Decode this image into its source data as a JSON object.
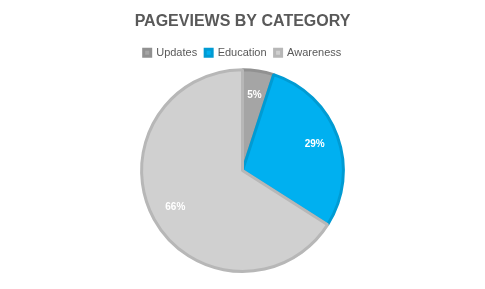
{
  "chart_data": {
    "type": "pie",
    "title": "PAGEVIEWS BY CATEGORY",
    "categories": [
      "Updates",
      "Education",
      "Awareness"
    ],
    "values": [
      5,
      29,
      66
    ],
    "value_labels": [
      "5%",
      "29%",
      "66%"
    ],
    "colors": [
      "#a5a5a5",
      "#00b0f0",
      "#d0d0d0"
    ],
    "data_labels": true,
    "legend": "top"
  }
}
